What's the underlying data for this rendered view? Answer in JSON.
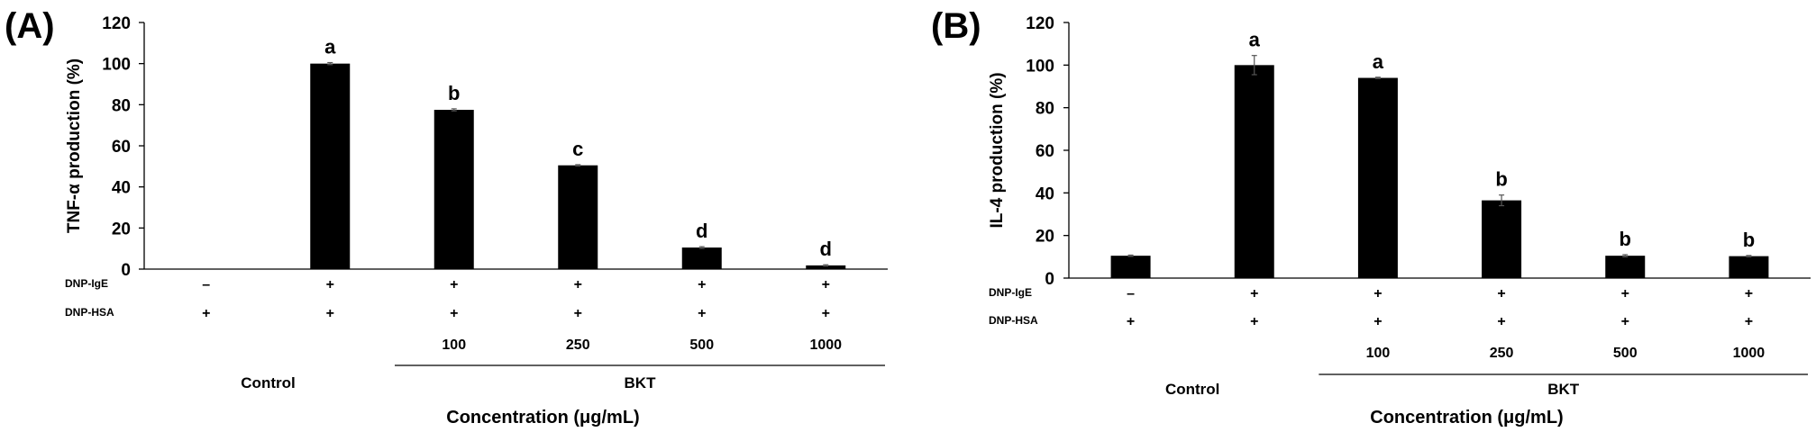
{
  "chart_data": [
    {
      "type": "bar",
      "panel": "(A)",
      "ylabel": "TNF-α production (%)",
      "ylim": [
        0,
        120
      ],
      "yticks": [
        "0",
        "20",
        "40",
        "60",
        "80",
        "100",
        "120"
      ],
      "values": [
        0,
        100,
        77.5,
        50.5,
        10.5,
        1.8
      ],
      "errors": [
        0,
        0.5,
        0.5,
        0.3,
        0.4,
        0.3
      ],
      "significance": [
        "",
        "a",
        "b",
        "c",
        "d",
        "d"
      ],
      "dnp_ige": [
        "–",
        "+",
        "+",
        "+",
        "+",
        "+"
      ],
      "dnp_hsa": [
        "+",
        "+",
        "+",
        "+",
        "+",
        "+"
      ],
      "concentrations": [
        "",
        "",
        "100",
        "250",
        "500",
        "1000"
      ],
      "row_labels": {
        "ige": "DNP-IgE",
        "hsa": "DNP-HSA"
      },
      "groups": {
        "control": "Control",
        "treatment": "BKT"
      },
      "xlabel": "Concentration (μg/mL)"
    },
    {
      "type": "bar",
      "panel": "(B)",
      "ylabel": "IL-4 production (%)",
      "ylim": [
        0,
        120
      ],
      "yticks": [
        "0",
        "20",
        "40",
        "60",
        "80",
        "100",
        "120"
      ],
      "values": [
        10.5,
        100,
        94,
        36.5,
        10.5,
        10.3
      ],
      "errors": [
        0.3,
        4.5,
        0.3,
        2.5,
        0.5,
        0.3
      ],
      "significance": [
        "",
        "a",
        "a",
        "b",
        "b",
        "b"
      ],
      "dnp_ige": [
        "–",
        "+",
        "+",
        "+",
        "+",
        "+"
      ],
      "dnp_hsa": [
        "+",
        "+",
        "+",
        "+",
        "+",
        "+"
      ],
      "concentrations": [
        "",
        "",
        "100",
        "250",
        "500",
        "1000"
      ],
      "row_labels": {
        "ige": "DNP-IgE",
        "hsa": "DNP-HSA"
      },
      "groups": {
        "control": "Control",
        "treatment": "BKT"
      },
      "xlabel": "Concentration (μg/mL)"
    }
  ]
}
